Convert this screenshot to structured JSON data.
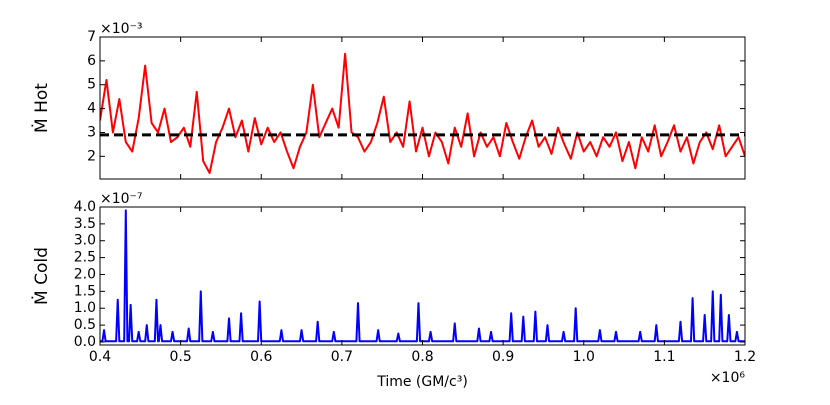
{
  "chart_data": [
    {
      "type": "line",
      "ylabel": "Ṁ  Hot",
      "y_offset_text": "×10⁻³",
      "show_xtick_labels": false,
      "xlim": [
        0.4,
        1.2
      ],
      "xticks": [
        0.4,
        0.5,
        0.6,
        0.7,
        0.8,
        0.9,
        {
          "value": 1.0,
          "label": "1.0"
        },
        1.1,
        1.2
      ],
      "ylim": [
        1.05,
        7
      ],
      "yticks": [
        2,
        3,
        4,
        5,
        6,
        7
      ],
      "reference_line": {
        "value": 2.9,
        "color": "#000000"
      },
      "x": [
        0.4,
        0.408,
        0.416,
        0.424,
        0.432,
        0.44,
        0.448,
        0.456,
        0.464,
        0.472,
        0.48,
        0.488,
        0.496,
        0.504,
        0.512,
        0.52,
        0.528,
        0.536,
        0.544,
        0.552,
        0.56,
        0.568,
        0.576,
        0.584,
        0.592,
        0.6,
        0.608,
        0.616,
        0.624,
        0.632,
        0.64,
        0.648,
        0.656,
        0.664,
        0.672,
        0.68,
        0.688,
        0.696,
        0.704,
        0.712,
        0.72,
        0.728,
        0.736,
        0.744,
        0.752,
        0.76,
        0.768,
        0.776,
        0.784,
        0.792,
        0.8,
        0.808,
        0.816,
        0.824,
        0.832,
        0.84,
        0.848,
        0.856,
        0.864,
        0.872,
        0.88,
        0.888,
        0.896,
        0.904,
        0.912,
        0.92,
        0.928,
        0.936,
        0.944,
        0.952,
        0.96,
        0.968,
        0.976,
        0.984,
        0.992,
        1.0,
        1.008,
        1.016,
        1.024,
        1.032,
        1.04,
        1.048,
        1.056,
        1.064,
        1.072,
        1.08,
        1.088,
        1.096,
        1.104,
        1.112,
        1.12,
        1.128,
        1.136,
        1.144,
        1.152,
        1.16,
        1.168,
        1.176,
        1.184,
        1.192,
        1.2
      ],
      "series": [
        {
          "color": "#ff0000",
          "values": [
            3.5,
            5.2,
            3.0,
            4.4,
            2.6,
            2.2,
            3.6,
            5.8,
            3.4,
            3.0,
            4.0,
            2.6,
            2.8,
            3.2,
            2.4,
            4.7,
            1.8,
            1.3,
            2.6,
            3.2,
            4.0,
            2.8,
            3.5,
            2.2,
            3.6,
            2.5,
            3.2,
            2.6,
            3.0,
            2.2,
            1.5,
            2.4,
            3.0,
            5.0,
            2.8,
            3.4,
            4.0,
            3.2,
            6.3,
            3.0,
            2.8,
            2.2,
            2.6,
            3.4,
            4.5,
            2.6,
            3.0,
            2.4,
            4.3,
            2.2,
            3.2,
            2.0,
            3.0,
            2.6,
            1.7,
            3.2,
            2.4,
            3.8,
            2.0,
            3.0,
            2.4,
            2.8,
            2.0,
            3.4,
            2.6,
            1.9,
            2.8,
            3.5,
            2.4,
            2.8,
            2.1,
            3.2,
            2.5,
            1.9,
            3.0,
            2.2,
            2.6,
            2.0,
            2.8,
            2.4,
            3.0,
            1.8,
            2.6,
            1.5,
            2.8,
            2.2,
            3.3,
            2.0,
            2.6,
            3.3,
            2.2,
            2.8,
            1.7,
            2.6,
            3.0,
            2.3,
            3.3,
            2.0,
            2.4,
            2.8,
            2.0
          ]
        }
      ]
    },
    {
      "type": "line",
      "ylabel": "Ṁ  Cold",
      "y_offset_text": "×10⁻⁷",
      "show_xtick_labels": true,
      "xlabel": "Time (GM/c³)",
      "x_offset_text": "×10⁶",
      "xlim": [
        0.4,
        1.2
      ],
      "xticks": [
        0.4,
        0.5,
        0.6,
        0.7,
        0.8,
        0.9,
        {
          "value": 1.0,
          "label": "1.0"
        },
        1.1,
        1.2
      ],
      "ylim": [
        -0.09,
        4.0
      ],
      "yticks": [
        {
          "value": 0,
          "label": "0.0"
        },
        0.5,
        {
          "value": 1,
          "label": "1.0"
        },
        1.5,
        {
          "value": 2,
          "label": "2.0"
        },
        2.5,
        {
          "value": 3,
          "label": "3.0"
        },
        3.5,
        {
          "value": 4,
          "label": "4.0"
        }
      ],
      "x": [
        0.4,
        0.403,
        0.405,
        0.407,
        0.42,
        0.422,
        0.424,
        0.43,
        0.432,
        0.434,
        0.436,
        0.438,
        0.44,
        0.446,
        0.448,
        0.45,
        0.456,
        0.458,
        0.46,
        0.468,
        0.47,
        0.472,
        0.473,
        0.475,
        0.477,
        0.488,
        0.49,
        0.492,
        0.508,
        0.51,
        0.512,
        0.523,
        0.525,
        0.527,
        0.538,
        0.54,
        0.542,
        0.558,
        0.56,
        0.562,
        0.573,
        0.575,
        0.577,
        0.596,
        0.598,
        0.6,
        0.623,
        0.625,
        0.627,
        0.648,
        0.65,
        0.652,
        0.668,
        0.67,
        0.672,
        0.688,
        0.69,
        0.692,
        0.718,
        0.72,
        0.722,
        0.743,
        0.745,
        0.747,
        0.768,
        0.77,
        0.772,
        0.793,
        0.795,
        0.797,
        0.808,
        0.81,
        0.812,
        0.838,
        0.84,
        0.842,
        0.868,
        0.87,
        0.872,
        0.883,
        0.885,
        0.887,
        0.908,
        0.91,
        0.912,
        0.923,
        0.925,
        0.927,
        0.938,
        0.94,
        0.942,
        0.953,
        0.955,
        0.957,
        0.973,
        0.975,
        0.977,
        0.988,
        0.99,
        0.992,
        1.018,
        1.02,
        1.022,
        1.038,
        1.04,
        1.042,
        1.068,
        1.07,
        1.072,
        1.088,
        1.09,
        1.092,
        1.118,
        1.12,
        1.122,
        1.133,
        1.135,
        1.137,
        1.148,
        1.15,
        1.152,
        1.158,
        1.16,
        1.162,
        1.168,
        1.17,
        1.172,
        1.178,
        1.18,
        1.182,
        1.188,
        1.19,
        1.192,
        1.2
      ],
      "series": [
        {
          "color": "#0000ff",
          "values": [
            0.02,
            0.02,
            0.35,
            0.02,
            0.02,
            1.25,
            0.02,
            0.02,
            3.9,
            0.02,
            0.02,
            1.1,
            0.02,
            0.02,
            0.3,
            0.02,
            0.02,
            0.5,
            0.02,
            0.02,
            1.25,
            0.02,
            0.02,
            0.5,
            0.02,
            0.02,
            0.3,
            0.02,
            0.02,
            0.4,
            0.02,
            0.02,
            1.5,
            0.02,
            0.02,
            0.3,
            0.02,
            0.02,
            0.7,
            0.02,
            0.02,
            0.85,
            0.02,
            0.02,
            1.2,
            0.02,
            0.02,
            0.35,
            0.02,
            0.02,
            0.35,
            0.02,
            0.02,
            0.6,
            0.02,
            0.02,
            0.3,
            0.02,
            0.02,
            1.15,
            0.02,
            0.02,
            0.35,
            0.02,
            0.02,
            0.25,
            0.02,
            0.02,
            1.15,
            0.02,
            0.02,
            0.3,
            0.02,
            0.02,
            0.55,
            0.02,
            0.02,
            0.4,
            0.02,
            0.02,
            0.3,
            0.02,
            0.02,
            0.85,
            0.02,
            0.02,
            0.75,
            0.02,
            0.02,
            0.9,
            0.02,
            0.02,
            0.5,
            0.02,
            0.02,
            0.3,
            0.02,
            0.02,
            1.0,
            0.02,
            0.02,
            0.35,
            0.02,
            0.02,
            0.3,
            0.02,
            0.02,
            0.3,
            0.02,
            0.02,
            0.5,
            0.02,
            0.02,
            0.6,
            0.02,
            0.02,
            1.3,
            0.02,
            0.02,
            0.8,
            0.02,
            0.02,
            1.5,
            0.02,
            0.02,
            1.4,
            0.02,
            0.02,
            0.8,
            0.02,
            0.02,
            0.3,
            0.02,
            0.02
          ]
        }
      ]
    }
  ]
}
